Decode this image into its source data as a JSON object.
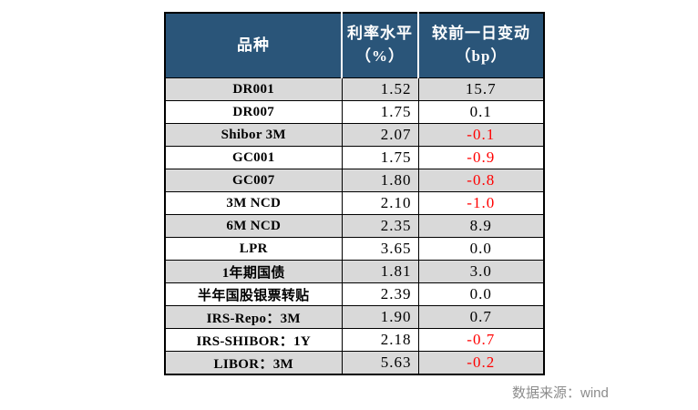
{
  "colors": {
    "header_bg": "#2A5579",
    "stripe_bg": "#D9D9D9",
    "negative_value": "#FF0000",
    "default_value": "#000000",
    "source_text": "#8C8C8C"
  },
  "table": {
    "headers": [
      {
        "line1": "品种",
        "line2": ""
      },
      {
        "line1": "利率水平",
        "line2": "（%）"
      },
      {
        "line1": "较前一日变动",
        "line2": "（bp）"
      }
    ],
    "rows": [
      {
        "variety": "DR001",
        "rate": "1.52",
        "change": "15.7"
      },
      {
        "variety": "DR007",
        "rate": "1.75",
        "change": "0.1"
      },
      {
        "variety": "Shibor 3M",
        "rate": "2.07",
        "change": "-0.1"
      },
      {
        "variety": "GC001",
        "rate": "1.75",
        "change": "-0.9"
      },
      {
        "variety": "GC007",
        "rate": "1.80",
        "change": "-0.8"
      },
      {
        "variety": "3M NCD",
        "rate": "2.10",
        "change": "-1.0"
      },
      {
        "variety": "6M NCD",
        "rate": "2.35",
        "change": "8.9"
      },
      {
        "variety": "LPR",
        "rate": "3.65",
        "change": "0.0"
      },
      {
        "variety": "1年期国债",
        "rate": "1.81",
        "change": "3.0"
      },
      {
        "variety": "半年国股银票转贴",
        "rate": "2.39",
        "change": "0.0"
      },
      {
        "variety": "IRS-Repo：3M",
        "rate": "1.90",
        "change": "0.7"
      },
      {
        "variety": "IRS-SHIBOR：1Y",
        "rate": "2.18",
        "change": "-0.7"
      },
      {
        "variety": "LIBOR：3M",
        "rate": "5.63",
        "change": "-0.2"
      }
    ]
  },
  "footer": {
    "source": "数据来源：wind"
  },
  "chart_data": {
    "type": "table",
    "title": "",
    "columns": [
      "品种",
      "利率水平（%）",
      "较前一日变动（bp）"
    ],
    "rows": [
      [
        "DR001",
        1.52,
        15.7
      ],
      [
        "DR007",
        1.75,
        0.1
      ],
      [
        "Shibor 3M",
        2.07,
        -0.1
      ],
      [
        "GC001",
        1.75,
        -0.9
      ],
      [
        "GC007",
        1.8,
        -0.8
      ],
      [
        "3M NCD",
        2.1,
        -1.0
      ],
      [
        "6M NCD",
        2.35,
        8.9
      ],
      [
        "LPR",
        3.65,
        0.0
      ],
      [
        "1年期国债",
        1.81,
        3.0
      ],
      [
        "半年国股银票转贴",
        2.39,
        0.0
      ],
      [
        "IRS-Repo：3M",
        1.9,
        0.7
      ],
      [
        "IRS-SHIBOR：1Y",
        2.18,
        -0.7
      ],
      [
        "LIBOR：3M",
        5.63,
        -0.2
      ]
    ],
    "notes": "negative changes rendered in red",
    "source": "数据来源：wind"
  }
}
